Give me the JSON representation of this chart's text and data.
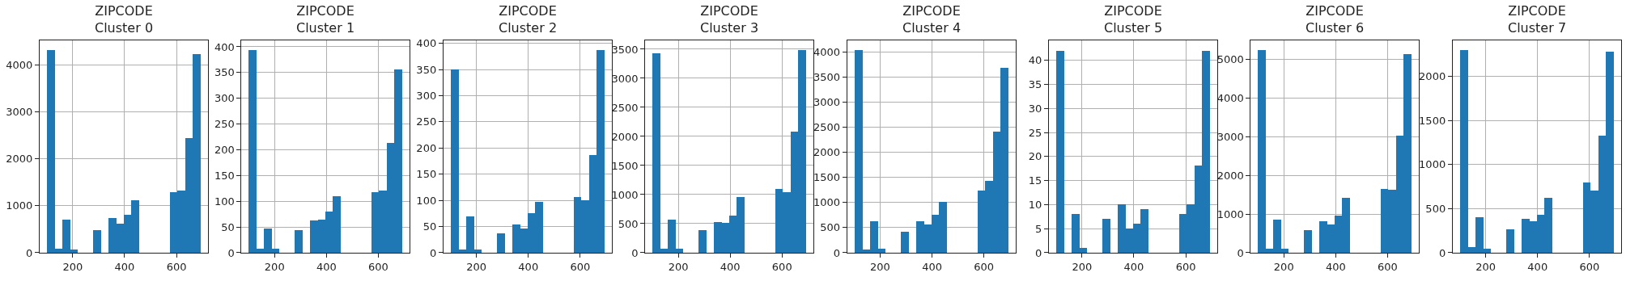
{
  "chart_data": [
    {
      "type": "histogram",
      "title": "ZIPCODE\nCluster 0",
      "bins": [
        102,
        131.5,
        161,
        190.5,
        220,
        249.5,
        279,
        308.5,
        338,
        367.5,
        397,
        426.5,
        456,
        485.5,
        515,
        544.5,
        574,
        603.5,
        633,
        662.5,
        692
      ],
      "values": [
        4310,
        80,
        700,
        70,
        0,
        0,
        470,
        0,
        730,
        620,
        800,
        1110,
        0,
        0,
        0,
        0,
        1280,
        1320,
        2430,
        4220
      ],
      "color": "#1f77b4",
      "xlim": [
        72.5,
        721.5
      ],
      "xticks": [
        200,
        400,
        600
      ],
      "ylim": [
        0,
        4515
      ],
      "yticks": [
        0,
        1000,
        2000,
        3000,
        4000
      ],
      "grid": true
    },
    {
      "type": "histogram",
      "title": "ZIPCODE\nCluster 1",
      "bins": [
        102,
        131.5,
        161,
        190.5,
        220,
        249.5,
        279,
        308.5,
        338,
        367.5,
        397,
        426.5,
        456,
        485.5,
        515,
        544.5,
        574,
        603.5,
        633,
        662.5,
        692
      ],
      "values": [
        393,
        8,
        47,
        8,
        0,
        0,
        44,
        0,
        62,
        64,
        79,
        109,
        0,
        0,
        0,
        0,
        117,
        120,
        212,
        355
      ],
      "color": "#1f77b4",
      "xlim": [
        72.5,
        721.5
      ],
      "xticks": [
        200,
        400,
        600
      ],
      "ylim": [
        0,
        412
      ],
      "yticks": [
        0,
        50,
        100,
        150,
        200,
        250,
        300,
        350,
        400
      ],
      "grid": true
    },
    {
      "type": "histogram",
      "title": "ZIPCODE\nCluster 2",
      "bins": [
        102,
        131.5,
        161,
        190.5,
        220,
        249.5,
        279,
        308.5,
        338,
        367.5,
        397,
        426.5,
        456,
        485.5,
        515,
        544.5,
        574,
        603.5,
        633,
        662.5,
        692
      ],
      "values": [
        349,
        6,
        69,
        6,
        0,
        0,
        36,
        0,
        54,
        45,
        75,
        97,
        0,
        0,
        0,
        0,
        106,
        99,
        186,
        386
      ],
      "color": "#1f77b4",
      "xlim": [
        72.5,
        721.5
      ],
      "xticks": [
        200,
        400,
        600
      ],
      "ylim": [
        0,
        405
      ],
      "yticks": [
        0,
        50,
        100,
        150,
        200,
        250,
        300,
        350,
        400
      ],
      "grid": true
    },
    {
      "type": "histogram",
      "title": "ZIPCODE\nCluster 3",
      "bins": [
        102,
        131.5,
        161,
        190.5,
        220,
        249.5,
        279,
        308.5,
        338,
        367.5,
        397,
        426.5,
        456,
        485.5,
        515,
        544.5,
        574,
        603.5,
        633,
        662.5,
        692
      ],
      "values": [
        3420,
        70,
        560,
        70,
        0,
        0,
        390,
        0,
        520,
        510,
        630,
        950,
        0,
        0,
        0,
        0,
        1090,
        1030,
        2080,
        3480
      ],
      "color": "#1f77b4",
      "xlim": [
        72.5,
        721.5
      ],
      "xticks": [
        200,
        400,
        600
      ],
      "ylim": [
        0,
        3648
      ],
      "yticks": [
        0,
        500,
        1000,
        1500,
        2000,
        2500,
        3000,
        3500
      ],
      "grid": true
    },
    {
      "type": "histogram",
      "title": "ZIPCODE\nCluster 4",
      "bins": [
        102,
        131.5,
        161,
        190.5,
        220,
        249.5,
        279,
        308.5,
        338,
        367.5,
        397,
        426.5,
        456,
        485.5,
        515,
        544.5,
        574,
        603.5,
        633,
        662.5,
        692
      ],
      "values": [
        4030,
        60,
        620,
        80,
        0,
        0,
        420,
        0,
        620,
        560,
        750,
        1000,
        0,
        0,
        0,
        0,
        1240,
        1430,
        2410,
        3670
      ],
      "color": "#1f77b4",
      "xlim": [
        72.5,
        721.5
      ],
      "xticks": [
        200,
        400,
        600
      ],
      "ylim": [
        0,
        4223
      ],
      "yticks": [
        0,
        500,
        1000,
        1500,
        2000,
        2500,
        3000,
        3500,
        4000
      ],
      "grid": true
    },
    {
      "type": "histogram",
      "title": "ZIPCODE\nCluster 5",
      "bins": [
        102,
        131.5,
        161,
        190.5,
        220,
        249.5,
        279,
        308.5,
        338,
        367.5,
        397,
        426.5,
        456,
        485.5,
        515,
        544.5,
        574,
        603.5,
        633,
        662.5,
        692
      ],
      "values": [
        42,
        0,
        8,
        1,
        0,
        0,
        7,
        0,
        10,
        5,
        6,
        9,
        0,
        0,
        0,
        0,
        8,
        10,
        18,
        42
      ],
      "color": "#1f77b4",
      "xlim": [
        72.5,
        721.5
      ],
      "xticks": [
        200,
        400,
        600
      ],
      "ylim": [
        0,
        44.1
      ],
      "yticks": [
        0,
        5,
        10,
        15,
        20,
        25,
        30,
        35,
        40
      ],
      "grid": true
    },
    {
      "type": "histogram",
      "title": "ZIPCODE\nCluster 6",
      "bins": [
        102,
        131.5,
        161,
        190.5,
        220,
        249.5,
        279,
        308.5,
        338,
        367.5,
        397,
        426.5,
        456,
        485.5,
        515,
        544.5,
        574,
        603.5,
        633,
        662.5,
        692
      ],
      "values": [
        5240,
        100,
        850,
        100,
        0,
        0,
        570,
        0,
        810,
        730,
        950,
        1420,
        0,
        0,
        0,
        0,
        1640,
        1620,
        3030,
        5140
      ],
      "color": "#1f77b4",
      "xlim": [
        72.5,
        721.5
      ],
      "xticks": [
        200,
        400,
        600
      ],
      "ylim": [
        0,
        5492
      ],
      "yticks": [
        0,
        1000,
        2000,
        3000,
        4000,
        5000
      ],
      "grid": true
    },
    {
      "type": "histogram",
      "title": "ZIPCODE\nCluster 7",
      "bins": [
        102,
        131.5,
        161,
        190.5,
        220,
        249.5,
        279,
        308.5,
        338,
        367.5,
        397,
        426.5,
        456,
        485.5,
        515,
        544.5,
        574,
        603.5,
        633,
        662.5,
        692
      ],
      "values": [
        2300,
        60,
        400,
        40,
        0,
        0,
        260,
        0,
        380,
        350,
        430,
        620,
        0,
        0,
        0,
        0,
        790,
        700,
        1330,
        2280
      ],
      "color": "#1f77b4",
      "xlim": [
        72.5,
        721.5
      ],
      "xticks": [
        200,
        400,
        600
      ],
      "ylim": [
        0,
        2408
      ],
      "yticks": [
        0,
        500,
        1000,
        1500,
        2000
      ],
      "grid": true
    }
  ]
}
